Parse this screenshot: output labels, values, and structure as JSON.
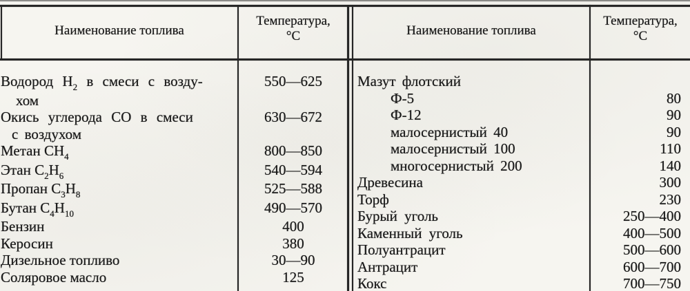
{
  "document": {
    "kind": "scanned-book-table",
    "language": "ru",
    "colors": {
      "ink": "#1a1a1a",
      "paper": "#f6f5f0",
      "rule": "#262626"
    }
  },
  "halves": [
    {
      "header": {
        "name": "Наименование топлива",
        "temp_line1": "Температура,",
        "temp_line2": "°С"
      },
      "rows": [
        {
          "temp": "550—625",
          "lines": [
            {
              "indent": 0,
              "ws": 8,
              "parts": [
                {
                  "t": "Водород H"
                },
                {
                  "s": "2"
                },
                {
                  "t": " в смеси с возду-"
                }
              ]
            },
            {
              "indent": 22,
              "ws": 0,
              "parts": [
                {
                  "t": "хом"
                }
              ]
            }
          ]
        },
        {
          "temp": "630—672",
          "lines": [
            {
              "indent": 0,
              "ws": 8,
              "parts": [
                {
                  "t": "Окись углерода CO в смеси"
                }
              ]
            },
            {
              "indent": 16,
              "ws": 4,
              "parts": [
                {
                  "t": "с воздухом"
                }
              ]
            }
          ]
        },
        {
          "temp": "800—850",
          "lines": [
            {
              "indent": 0,
              "ws": 0,
              "parts": [
                {
                  "t": "Метан CH"
                },
                {
                  "s": "4"
                }
              ]
            }
          ]
        },
        {
          "temp": "540—594",
          "lines": [
            {
              "indent": 0,
              "ws": 0,
              "parts": [
                {
                  "t": "Этан C"
                },
                {
                  "s": "2"
                },
                {
                  "t": "H"
                },
                {
                  "s": "6"
                }
              ]
            }
          ]
        },
        {
          "temp": "525—588",
          "lines": [
            {
              "indent": 0,
              "ws": 0,
              "parts": [
                {
                  "t": "Пропан C"
                },
                {
                  "s": "3"
                },
                {
                  "t": "H"
                },
                {
                  "s": "8"
                }
              ]
            }
          ]
        },
        {
          "temp": "490—570",
          "lines": [
            {
              "indent": 0,
              "ws": 0,
              "parts": [
                {
                  "t": "Бутан C"
                },
                {
                  "s": "4"
                },
                {
                  "t": "H"
                },
                {
                  "s": "10"
                }
              ]
            }
          ]
        },
        {
          "temp": "400",
          "lines": [
            {
              "indent": 0,
              "ws": 0,
              "parts": [
                {
                  "t": "Бензин"
                }
              ]
            }
          ]
        },
        {
          "temp": "380",
          "lines": [
            {
              "indent": 0,
              "ws": 0,
              "parts": [
                {
                  "t": "Керосин"
                }
              ]
            }
          ]
        },
        {
          "temp": "30—90",
          "lines": [
            {
              "indent": 0,
              "ws": 0,
              "parts": [
                {
                  "t": "Дизельное топливо"
                }
              ]
            }
          ]
        },
        {
          "temp": "125",
          "lines": [
            {
              "indent": 0,
              "ws": 0,
              "parts": [
                {
                  "t": "Соляровое масло"
                }
              ]
            }
          ]
        }
      ]
    },
    {
      "header": {
        "name": "Наименование топлива",
        "temp_line1": "Температура,",
        "temp_line2": "°С"
      },
      "rows": [
        {
          "temp": "",
          "lines": [
            {
              "indent": 0,
              "ws": 4,
              "parts": [
                {
                  "t": "Мазут флотский"
                }
              ]
            }
          ]
        },
        {
          "temp": "80",
          "lines": [
            {
              "indent": 48,
              "ws": 0,
              "parts": [
                {
                  "t": "Ф-5"
                }
              ]
            }
          ]
        },
        {
          "temp": "90",
          "lines": [
            {
              "indent": 48,
              "ws": 0,
              "parts": [
                {
                  "t": "Ф-12"
                }
              ]
            }
          ]
        },
        {
          "temp": "90",
          "lines": [
            {
              "indent": 48,
              "ws": 4,
              "parts": [
                {
                  "t": "малосернистый 40"
                }
              ]
            }
          ]
        },
        {
          "temp": "110",
          "lines": [
            {
              "indent": 48,
              "ws": 4,
              "parts": [
                {
                  "t": "малосернистый 100"
                }
              ]
            }
          ]
        },
        {
          "temp": "140",
          "lines": [
            {
              "indent": 48,
              "ws": 4,
              "parts": [
                {
                  "t": "многосернистый 200"
                }
              ]
            }
          ]
        },
        {
          "temp": "300",
          "lines": [
            {
              "indent": 0,
              "ws": 0,
              "parts": [
                {
                  "t": "Древесина"
                }
              ]
            }
          ]
        },
        {
          "temp": "230",
          "lines": [
            {
              "indent": 0,
              "ws": 0,
              "parts": [
                {
                  "t": "Торф"
                }
              ]
            }
          ]
        },
        {
          "temp": "250—400",
          "lines": [
            {
              "indent": 0,
              "ws": 5,
              "parts": [
                {
                  "t": "Бурый уголь"
                }
              ]
            }
          ]
        },
        {
          "temp": "400—500",
          "lines": [
            {
              "indent": 0,
              "ws": 5,
              "parts": [
                {
                  "t": "Каменный уголь"
                }
              ]
            }
          ]
        },
        {
          "temp": "500—600",
          "lines": [
            {
              "indent": 0,
              "ws": 0,
              "parts": [
                {
                  "t": "Полуантрацит"
                }
              ]
            }
          ]
        },
        {
          "temp": "600—700",
          "lines": [
            {
              "indent": 0,
              "ws": 0,
              "parts": [
                {
                  "t": "Антрацит"
                }
              ]
            }
          ]
        },
        {
          "temp": "700—750",
          "lines": [
            {
              "indent": 0,
              "ws": 0,
              "parts": [
                {
                  "t": "Кокс"
                }
              ]
            }
          ]
        }
      ]
    }
  ]
}
